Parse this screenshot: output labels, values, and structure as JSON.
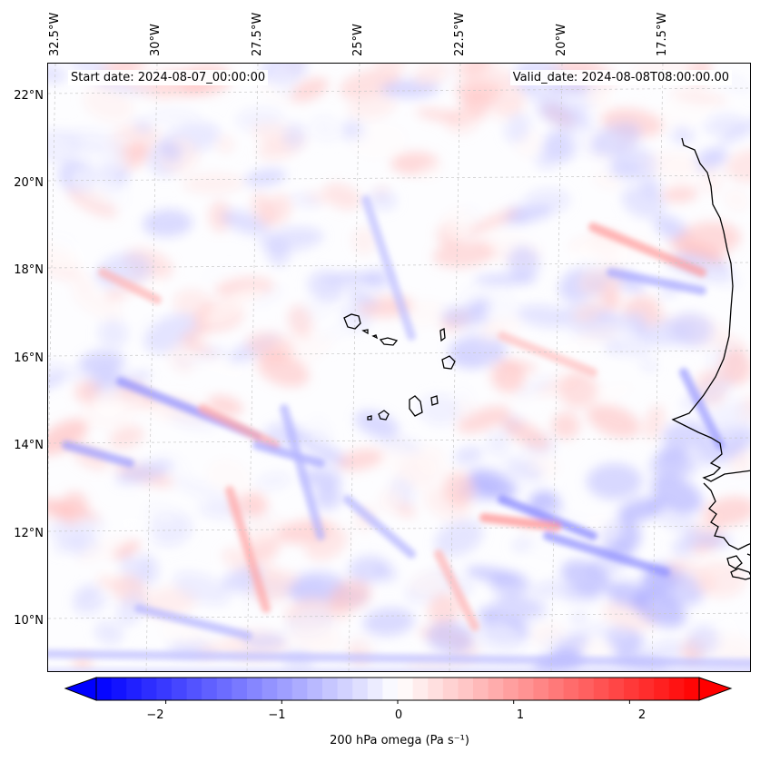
{
  "header": {
    "start_date": "Start date: 2024-08-07_00:00:00",
    "valid_date": "Valid_date: 2024-08-08T08:00:00.00"
  },
  "axes": {
    "lat_labels": [
      "22°N",
      "20°N",
      "18°N",
      "16°N",
      "14°N",
      "12°N",
      "10°N"
    ],
    "lon_labels": [
      "32.5°W",
      "30°W",
      "27.5°W",
      "25°W",
      "22.5°W",
      "20°W",
      "17.5°W"
    ]
  },
  "colorbar": {
    "ticks": [
      "−2",
      "−1",
      "0",
      "1",
      "2"
    ],
    "tick_values": [
      -2,
      -1,
      0,
      1,
      2
    ],
    "range": [
      -2.6,
      2.6
    ],
    "label": "200 hPa omega (Pa s⁻¹)",
    "cmap": "bwr",
    "colors": {
      "negative": "#0000ff",
      "zero": "#ffffff",
      "positive": "#ff0000"
    }
  },
  "map": {
    "region_lat": [
      9,
      22.8
    ],
    "region_lon": [
      -33,
      -15
    ],
    "gridlines": true,
    "coastline_color": "#000000",
    "features": [
      "cape-verde-islands",
      "west-africa-coast"
    ]
  }
}
